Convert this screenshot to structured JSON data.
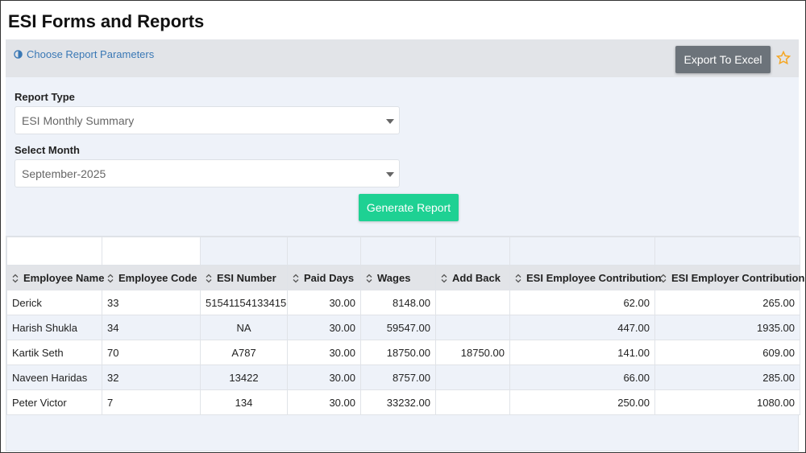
{
  "header": {
    "title": "ESI Forms and Reports"
  },
  "parameters": {
    "link": "Choose Report Parameters",
    "export_button": "Export To Excel",
    "report_type_label": "Report Type",
    "report_type_value": "ESI Monthly Summary",
    "month_label": "Select Month",
    "month_value": "September-2025",
    "generate_button": "Generate Report"
  },
  "table": {
    "columns": [
      "Employee Name",
      "Employee Code",
      "ESI Number",
      "Paid Days",
      "Wages",
      "Add Back",
      "ESI Employee Contribution",
      "ESI Employer Contribution"
    ],
    "rows": [
      [
        "Derick",
        "33",
        "51541154133415",
        "30.00",
        "8148.00",
        "",
        "62.00",
        "265.00"
      ],
      [
        "Harish Shukla",
        "34",
        "NA",
        "30.00",
        "59547.00",
        "",
        "447.00",
        "1935.00"
      ],
      [
        "Kartik Seth",
        "70",
        "A787",
        "30.00",
        "18750.00",
        "18750.00",
        "141.00",
        "609.00"
      ],
      [
        "Naveen Haridas",
        "32",
        "13422",
        "30.00",
        "8757.00",
        "",
        "66.00",
        "285.00"
      ],
      [
        "Peter Victor",
        "7",
        "134",
        "30.00",
        "33232.00",
        "",
        "250.00",
        "1080.00"
      ]
    ]
  }
}
